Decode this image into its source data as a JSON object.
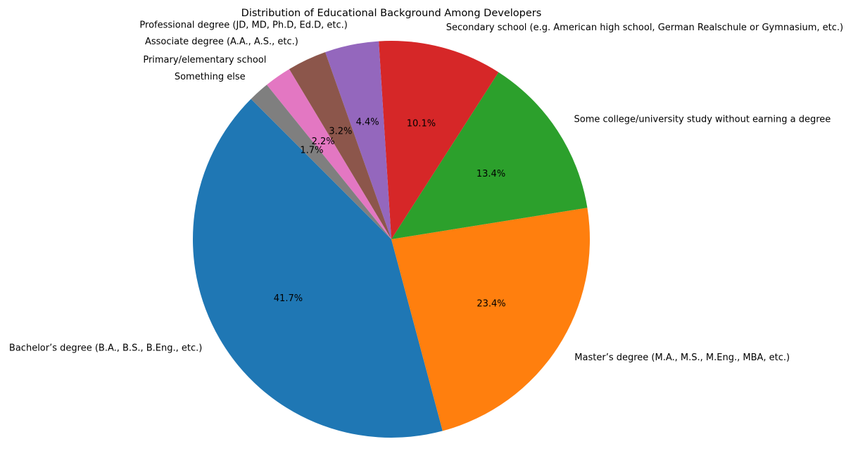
{
  "chart_data": {
    "type": "pie",
    "title": "Distribution of Educational Background Among Developers",
    "start_angle_deg": 135,
    "direction": "counterclockwise",
    "legend": "none",
    "slices": [
      {
        "label": "Bachelor’s degree (B.A., B.S., B.Eng., etc.)",
        "value": 41.7,
        "pct_label": "41.7%",
        "color": "#1f77b4"
      },
      {
        "label": "Master’s degree (M.A., M.S., M.Eng., MBA, etc.)",
        "value": 23.4,
        "pct_label": "23.4%",
        "color": "#ff7f0e"
      },
      {
        "label": "Some college/university study without earning a degree",
        "value": 13.4,
        "pct_label": "13.4%",
        "color": "#2ca02c"
      },
      {
        "label": "Secondary school (e.g. American high school, German Realschule or Gymnasium, etc.)",
        "value": 10.1,
        "pct_label": "10.1%",
        "color": "#d62728"
      },
      {
        "label": "Professional degree (JD, MD, Ph.D, Ed.D, etc.)",
        "value": 4.4,
        "pct_label": "4.4%",
        "color": "#9467bd"
      },
      {
        "label": "Associate degree (A.A., A.S., etc.)",
        "value": 3.2,
        "pct_label": "3.2%",
        "color": "#8c564b"
      },
      {
        "label": "Primary/elementary school",
        "value": 2.2,
        "pct_label": "2.2%",
        "color": "#e377c2"
      },
      {
        "label": "Something else",
        "value": 1.7,
        "pct_label": "1.7%",
        "color": "#7f7f7f"
      }
    ]
  }
}
